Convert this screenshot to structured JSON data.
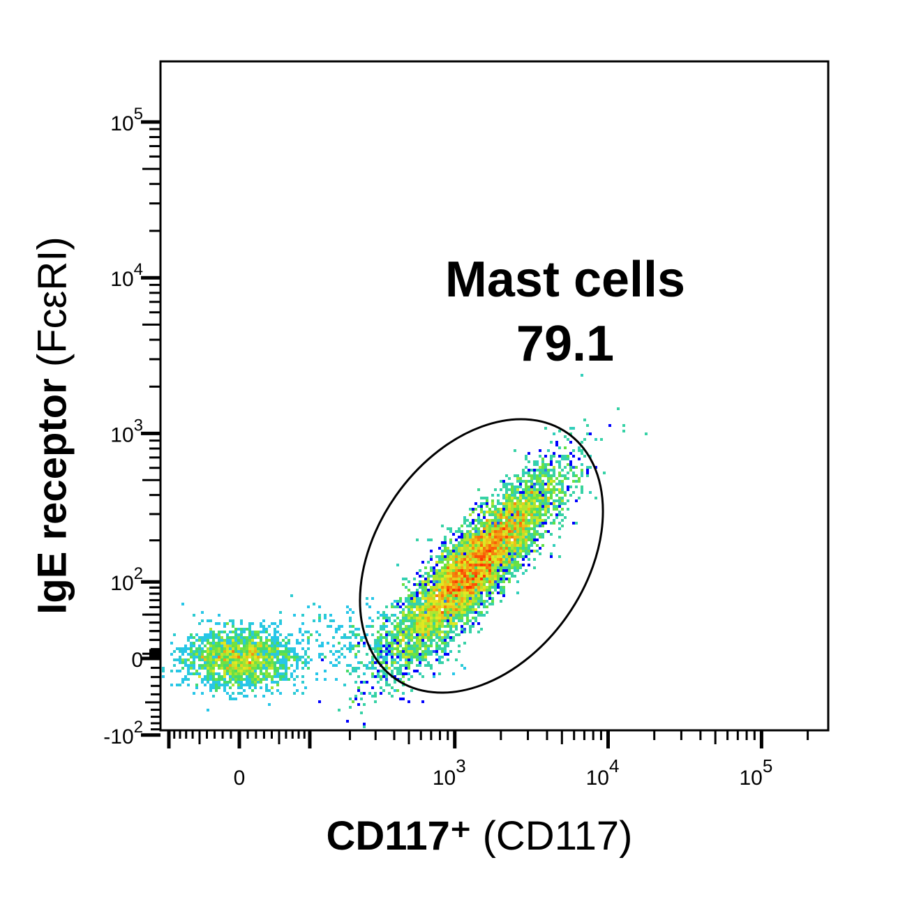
{
  "chart_data": {
    "type": "heatmap",
    "subtype": "flow-cytometry pseudocolor density dot plot",
    "xlabel": {
      "bold": "CD117⁺",
      "normal": " (CD117)"
    },
    "ylabel": {
      "bold": "IgE receptor",
      "normal": " (FcεRI)"
    },
    "x_scale": "biexponential",
    "y_scale": "biexponential",
    "x_ticks": [
      {
        "value": 0,
        "label": "0"
      },
      {
        "value": 1000,
        "label": "10",
        "exp": "3"
      },
      {
        "value": 10000,
        "label": "10",
        "exp": "4"
      },
      {
        "value": 100000,
        "label": "10",
        "exp": "5"
      }
    ],
    "y_ticks": [
      {
        "value": -100,
        "label": "-10",
        "exp": "2"
      },
      {
        "value": 0,
        "label": "0"
      },
      {
        "value": 100,
        "label": "10",
        "exp": "2"
      },
      {
        "value": 1000,
        "label": "10",
        "exp": "3"
      },
      {
        "value": 10000,
        "label": "10",
        "exp": "4"
      },
      {
        "value": 100000,
        "label": "10",
        "exp": "5"
      }
    ],
    "populations": [
      {
        "x_center": 1350,
        "y_center": 130,
        "fraction": 0.79
      },
      {
        "x_center": 0,
        "y_center": 0,
        "fraction": 0.21
      }
    ],
    "gate": {
      "name": "Mast cells",
      "value": "79.1",
      "shape": "ellipse"
    },
    "colormap": [
      "#0000ff",
      "#2a6ef0",
      "#27c8e8",
      "#4ce04c",
      "#e8e820",
      "#ff3300"
    ]
  }
}
